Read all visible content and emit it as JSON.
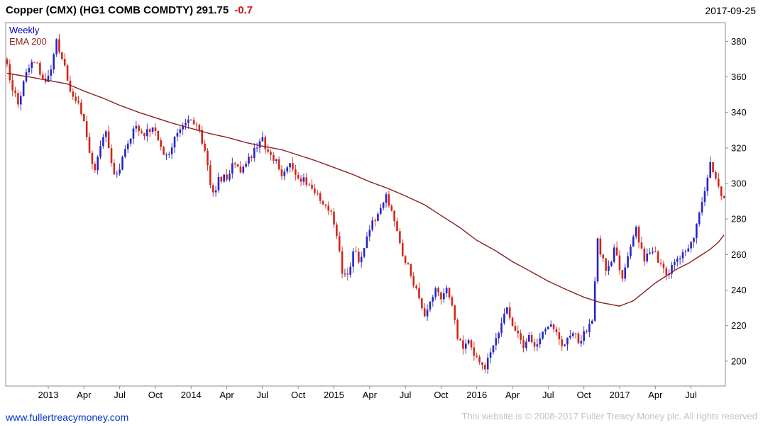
{
  "header": {
    "title": "Copper (CMX) (HG1 COMB COMDTY) 291.75",
    "change": "-0.7",
    "date": "2017-09-25"
  },
  "plot_labels": {
    "timeframe": "Weekly",
    "overlay": "EMA 200"
  },
  "footer": {
    "link": "www.fullertreacymoney.com",
    "copyright": "This website is © 2008-2017 Fuller Treacy Money plc. All rights reserved"
  },
  "chart_data": {
    "type": "candlestick",
    "title": "Copper (CMX) (HG1 COMB COMDTY)",
    "timeframe": "Weekly",
    "last_close": 291.75,
    "change": -0.7,
    "date": "2017-09-25",
    "overlay": {
      "name": "EMA 200",
      "color": "#8b1f1f"
    },
    "colors": {
      "up": "#2824c8",
      "down": "#d22619",
      "frame": "#8c8c8c"
    },
    "y_axis": {
      "min": 186,
      "max": 390.5,
      "ticks": [
        200,
        220,
        240,
        260,
        280,
        300,
        320,
        340,
        360,
        380
      ]
    },
    "x_axis": {
      "ticks": [
        {
          "label": "2013",
          "week": 15
        },
        {
          "label": "Apr",
          "week": 28
        },
        {
          "label": "Jul",
          "week": 41
        },
        {
          "label": "Oct",
          "week": 54
        },
        {
          "label": "2014",
          "week": 67
        },
        {
          "label": "Apr",
          "week": 80
        },
        {
          "label": "Jul",
          "week": 93
        },
        {
          "label": "Oct",
          "week": 106
        },
        {
          "label": "2015",
          "week": 119
        },
        {
          "label": "Apr",
          "week": 132
        },
        {
          "label": "Jul",
          "week": 145
        },
        {
          "label": "Oct",
          "week": 158
        },
        {
          "label": "2016",
          "week": 171
        },
        {
          "label": "Apr",
          "week": 184
        },
        {
          "label": "Jul",
          "week": 197
        },
        {
          "label": "Oct",
          "week": 210
        },
        {
          "label": "2017",
          "week": 223
        },
        {
          "label": "Apr",
          "week": 236
        },
        {
          "label": "Jul",
          "week": 249
        }
      ]
    },
    "weeks_total": 262,
    "close_anchors": [
      [
        0,
        368
      ],
      [
        2,
        352
      ],
      [
        4,
        346
      ],
      [
        7,
        362
      ],
      [
        10,
        370
      ],
      [
        12,
        362
      ],
      [
        14,
        356
      ],
      [
        16,
        364
      ],
      [
        18,
        379
      ],
      [
        20,
        371
      ],
      [
        23,
        352
      ],
      [
        26,
        346
      ],
      [
        28,
        336
      ],
      [
        30,
        318
      ],
      [
        32,
        307
      ],
      [
        34,
        322
      ],
      [
        36,
        330
      ],
      [
        38,
        312
      ],
      [
        39,
        304
      ],
      [
        41,
        310
      ],
      [
        44,
        324
      ],
      [
        47,
        333
      ],
      [
        50,
        327
      ],
      [
        52,
        331
      ],
      [
        54,
        330
      ],
      [
        56,
        321
      ],
      [
        58,
        315
      ],
      [
        61,
        326
      ],
      [
        64,
        333
      ],
      [
        66,
        338
      ],
      [
        68,
        333
      ],
      [
        70,
        329
      ],
      [
        72,
        318
      ],
      [
        74,
        300
      ],
      [
        75,
        293
      ],
      [
        77,
        302
      ],
      [
        80,
        304
      ],
      [
        83,
        312
      ],
      [
        85,
        307
      ],
      [
        88,
        314
      ],
      [
        91,
        320
      ],
      [
        93,
        324
      ],
      [
        95,
        318
      ],
      [
        98,
        312
      ],
      [
        100,
        306
      ],
      [
        103,
        310
      ],
      [
        106,
        304
      ],
      [
        109,
        301
      ],
      [
        112,
        296
      ],
      [
        115,
        289
      ],
      [
        118,
        283
      ],
      [
        120,
        272
      ],
      [
        122,
        251
      ],
      [
        124,
        248
      ],
      [
        126,
        262
      ],
      [
        128,
        257
      ],
      [
        130,
        263
      ],
      [
        132,
        274
      ],
      [
        134,
        281
      ],
      [
        136,
        288
      ],
      [
        138,
        294
      ],
      [
        140,
        284
      ],
      [
        142,
        272
      ],
      [
        144,
        261
      ],
      [
        146,
        254
      ],
      [
        148,
        243
      ],
      [
        150,
        237
      ],
      [
        152,
        226
      ],
      [
        154,
        233
      ],
      [
        156,
        243
      ],
      [
        158,
        235
      ],
      [
        160,
        240
      ],
      [
        162,
        231
      ],
      [
        164,
        214
      ],
      [
        166,
        206
      ],
      [
        168,
        212
      ],
      [
        170,
        205
      ],
      [
        172,
        201
      ],
      [
        174,
        196
      ],
      [
        176,
        205
      ],
      [
        178,
        211
      ],
      [
        180,
        222
      ],
      [
        182,
        229
      ],
      [
        184,
        222
      ],
      [
        186,
        215
      ],
      [
        188,
        209
      ],
      [
        190,
        214
      ],
      [
        192,
        207
      ],
      [
        194,
        212
      ],
      [
        196,
        218
      ],
      [
        198,
        221
      ],
      [
        200,
        215
      ],
      [
        202,
        208
      ],
      [
        204,
        214
      ],
      [
        206,
        217
      ],
      [
        208,
        211
      ],
      [
        210,
        215
      ],
      [
        212,
        219
      ],
      [
        213,
        222
      ],
      [
        214,
        245
      ],
      [
        215,
        267
      ],
      [
        216,
        262
      ],
      [
        218,
        251
      ],
      [
        220,
        257
      ],
      [
        221,
        264
      ],
      [
        223,
        251
      ],
      [
        224,
        247
      ],
      [
        226,
        261
      ],
      [
        228,
        272
      ],
      [
        229,
        276
      ],
      [
        231,
        262
      ],
      [
        232,
        256
      ],
      [
        234,
        262
      ],
      [
        236,
        261
      ],
      [
        238,
        254
      ],
      [
        240,
        249
      ],
      [
        242,
        253
      ],
      [
        244,
        257
      ],
      [
        246,
        260
      ],
      [
        248,
        263
      ],
      [
        250,
        270
      ],
      [
        252,
        284
      ],
      [
        254,
        296
      ],
      [
        255,
        304
      ],
      [
        256,
        311
      ],
      [
        257,
        307
      ],
      [
        258,
        301
      ],
      [
        259,
        297
      ],
      [
        260,
        294
      ],
      [
        261,
        291.75
      ]
    ],
    "ema_anchors": [
      [
        0,
        362
      ],
      [
        8,
        360
      ],
      [
        15,
        358
      ],
      [
        22,
        356
      ],
      [
        28,
        352
      ],
      [
        35,
        348
      ],
      [
        41,
        344
      ],
      [
        48,
        340
      ],
      [
        54,
        337
      ],
      [
        60,
        334
      ],
      [
        67,
        331
      ],
      [
        74,
        328
      ],
      [
        80,
        326
      ],
      [
        87,
        323
      ],
      [
        93,
        321
      ],
      [
        100,
        319
      ],
      [
        106,
        316
      ],
      [
        112,
        313
      ],
      [
        119,
        309
      ],
      [
        126,
        305
      ],
      [
        132,
        301
      ],
      [
        139,
        297
      ],
      [
        145,
        293
      ],
      [
        152,
        288
      ],
      [
        158,
        282
      ],
      [
        165,
        275
      ],
      [
        171,
        268
      ],
      [
        178,
        262
      ],
      [
        184,
        256
      ],
      [
        190,
        251
      ],
      [
        197,
        245
      ],
      [
        204,
        240
      ],
      [
        210,
        236
      ],
      [
        216,
        233
      ],
      [
        223,
        231
      ],
      [
        228,
        234
      ],
      [
        232,
        239
      ],
      [
        236,
        244
      ],
      [
        240,
        248
      ],
      [
        244,
        252
      ],
      [
        248,
        255
      ],
      [
        252,
        259
      ],
      [
        256,
        263
      ],
      [
        259,
        267
      ],
      [
        261,
        271
      ]
    ],
    "noise": {
      "seed": 12,
      "close_amp": 2.2,
      "wick_amp": 3.4
    }
  }
}
